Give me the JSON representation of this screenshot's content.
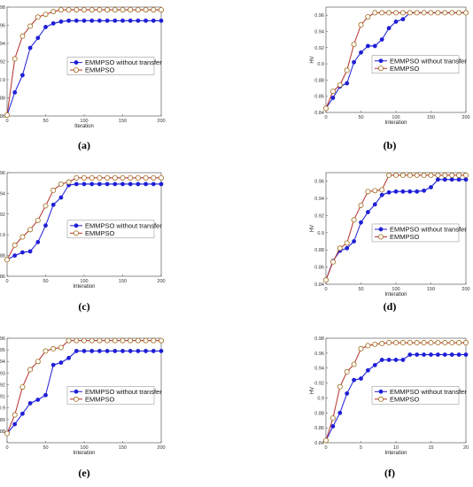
{
  "colors": {
    "without_transfer": "#1f1fd6",
    "emmpso": "#b2302a",
    "band_blue": "#9fb0ff",
    "band_pink": "#f6bfd8",
    "axis": "#444444"
  },
  "chart_data": [
    {
      "panel": "(a)",
      "type": "line",
      "xlabel": "Iteration",
      "ylabel": "HV",
      "xlim": [
        0,
        200
      ],
      "ylim": [
        0.86,
        0.98
      ],
      "xticks": [
        "0",
        "50",
        "100",
        "150",
        "200"
      ],
      "yticks": [
        "0.86",
        "0.88",
        "0.9",
        "0.92",
        "0.94",
        "0.96",
        "0.98"
      ],
      "legend": "middle-right",
      "series": [
        {
          "name": "EMMPSO without transfer",
          "marker": "filled-circle",
          "x": [
            0,
            10,
            20,
            30,
            40,
            50,
            60,
            70,
            80,
            90,
            100,
            110,
            120,
            130,
            140,
            150,
            160,
            170,
            180,
            190,
            200
          ],
          "y": [
            0.861,
            0.886,
            0.905,
            0.935,
            0.946,
            0.958,
            0.962,
            0.964,
            0.965,
            0.965,
            0.965,
            0.965,
            0.965,
            0.965,
            0.965,
            0.965,
            0.965,
            0.965,
            0.965,
            0.965,
            0.965
          ]
        },
        {
          "name": "EMMPSO",
          "marker": "open-circle",
          "x": [
            0,
            10,
            20,
            30,
            40,
            50,
            60,
            70,
            80,
            90,
            100,
            110,
            120,
            130,
            140,
            150,
            160,
            170,
            180,
            190,
            200
          ],
          "y": [
            0.861,
            0.923,
            0.948,
            0.959,
            0.969,
            0.972,
            0.975,
            0.977,
            0.977,
            0.977,
            0.977,
            0.977,
            0.977,
            0.977,
            0.977,
            0.977,
            0.977,
            0.977,
            0.977,
            0.977,
            0.977
          ]
        }
      ]
    },
    {
      "panel": "(b)",
      "type": "line",
      "xlabel": "Interation",
      "ylabel": "HV",
      "xlim": [
        0,
        200
      ],
      "ylim": [
        0.84,
        0.97
      ],
      "xticks": [
        "0",
        "50",
        "100",
        "150",
        "200"
      ],
      "yticks": [
        "0.84",
        "0.86",
        "0.88",
        "0.9",
        "0.92",
        "0.94",
        "0.96"
      ],
      "legend": "middle-right",
      "series": [
        {
          "name": "EMMPSO without transfer",
          "marker": "filled-circle",
          "x": [
            0,
            10,
            20,
            30,
            40,
            50,
            60,
            70,
            80,
            90,
            100,
            110,
            120,
            130,
            140,
            150,
            160,
            170,
            180,
            190,
            200
          ],
          "y": [
            0.845,
            0.858,
            0.872,
            0.876,
            0.902,
            0.914,
            0.922,
            0.922,
            0.93,
            0.944,
            0.952,
            0.955,
            0.963,
            0.963,
            0.963,
            0.963,
            0.963,
            0.963,
            0.963,
            0.963,
            0.963
          ]
        },
        {
          "name": "EMMPSO",
          "marker": "open-circle",
          "x": [
            0,
            10,
            20,
            30,
            40,
            50,
            60,
            70,
            80,
            90,
            100,
            110,
            120,
            130,
            140,
            150,
            160,
            170,
            180,
            190,
            200
          ],
          "y": [
            0.845,
            0.866,
            0.874,
            0.892,
            0.924,
            0.948,
            0.958,
            0.963,
            0.963,
            0.963,
            0.963,
            0.963,
            0.963,
            0.963,
            0.963,
            0.963,
            0.963,
            0.963,
            0.963,
            0.963,
            0.963
          ]
        }
      ]
    },
    {
      "panel": "(c)",
      "type": "line",
      "xlabel": "Interation",
      "ylabel": "HV",
      "xlim": [
        0,
        200
      ],
      "ylim": [
        0.86,
        0.96
      ],
      "xticks": [
        "0",
        "50",
        "100",
        "150",
        "200"
      ],
      "yticks": [
        "0.86",
        "0.88",
        "0.9",
        "0.92",
        "0.94",
        "0.96"
      ],
      "legend": "middle-right",
      "series": [
        {
          "name": "EMMPSO without transfer",
          "marker": "filled-circle",
          "x": [
            0,
            10,
            20,
            30,
            40,
            50,
            60,
            70,
            80,
            90,
            100,
            110,
            120,
            130,
            140,
            150,
            160,
            170,
            180,
            190,
            200
          ],
          "y": [
            0.876,
            0.88,
            0.883,
            0.884,
            0.893,
            0.909,
            0.929,
            0.936,
            0.948,
            0.949,
            0.949,
            0.949,
            0.949,
            0.949,
            0.949,
            0.949,
            0.949,
            0.949,
            0.949,
            0.949,
            0.949
          ]
        },
        {
          "name": "EMMPSO",
          "marker": "open-circle",
          "x": [
            0,
            10,
            20,
            30,
            40,
            50,
            60,
            70,
            80,
            90,
            100,
            110,
            120,
            130,
            140,
            150,
            160,
            170,
            180,
            190,
            200
          ],
          "y": [
            0.876,
            0.89,
            0.898,
            0.905,
            0.914,
            0.928,
            0.943,
            0.949,
            0.951,
            0.955,
            0.955,
            0.955,
            0.955,
            0.955,
            0.955,
            0.955,
            0.955,
            0.955,
            0.955,
            0.955,
            0.955
          ]
        }
      ]
    },
    {
      "panel": "(d)",
      "type": "line",
      "xlabel": "Interation",
      "ylabel": "HV",
      "xlim": [
        0,
        200
      ],
      "ylim": [
        0.84,
        0.97
      ],
      "xticks": [
        "0",
        "50",
        "100",
        "150",
        "200"
      ],
      "yticks": [
        "0.84",
        "0.86",
        "0.88",
        "0.9",
        "0.92",
        "0.94",
        "0.96"
      ],
      "legend": "middle-right",
      "series": [
        {
          "name": "EMMPSO without transfer",
          "marker": "filled-circle",
          "x": [
            0,
            10,
            20,
            30,
            40,
            50,
            60,
            70,
            80,
            90,
            100,
            110,
            120,
            130,
            140,
            150,
            160,
            170,
            180,
            190,
            200
          ],
          "y": [
            0.845,
            0.867,
            0.879,
            0.882,
            0.89,
            0.912,
            0.924,
            0.933,
            0.944,
            0.947,
            0.948,
            0.948,
            0.948,
            0.948,
            0.949,
            0.953,
            0.962,
            0.962,
            0.962,
            0.962,
            0.962
          ]
        },
        {
          "name": "EMMPSO",
          "marker": "open-circle",
          "x": [
            0,
            10,
            20,
            30,
            40,
            50,
            60,
            70,
            80,
            90,
            100,
            110,
            120,
            130,
            140,
            150,
            160,
            170,
            180,
            190,
            200
          ],
          "y": [
            0.845,
            0.866,
            0.882,
            0.888,
            0.915,
            0.932,
            0.948,
            0.949,
            0.95,
            0.967,
            0.967,
            0.967,
            0.967,
            0.967,
            0.967,
            0.967,
            0.967,
            0.967,
            0.967,
            0.967,
            0.967
          ]
        }
      ]
    },
    {
      "panel": "(e)",
      "type": "line",
      "xlabel": "Interation",
      "ylabel": "HV",
      "xlim": [
        0,
        200
      ],
      "ylim": [
        0.87,
        0.96
      ],
      "xticks": [
        "0",
        "50",
        "100",
        "150",
        "200"
      ],
      "yticks": [
        "0.88",
        "0.89",
        "0.9",
        "0.91",
        "0.92",
        "0.93",
        "0.94",
        "0.95",
        "0.96"
      ],
      "legend": "middle-right",
      "series": [
        {
          "name": "EMMPSO without transfer",
          "marker": "filled-circle",
          "x": [
            0,
            10,
            20,
            30,
            40,
            50,
            60,
            70,
            80,
            90,
            100,
            110,
            120,
            130,
            140,
            150,
            160,
            170,
            180,
            190,
            200
          ],
          "y": [
            0.878,
            0.886,
            0.895,
            0.904,
            0.907,
            0.911,
            0.937,
            0.939,
            0.943,
            0.949,
            0.949,
            0.949,
            0.949,
            0.949,
            0.949,
            0.949,
            0.949,
            0.949,
            0.949,
            0.949,
            0.949
          ]
        },
        {
          "name": "EMMPSO",
          "marker": "open-circle",
          "x": [
            0,
            10,
            20,
            30,
            40,
            50,
            60,
            70,
            80,
            90,
            100,
            110,
            120,
            130,
            140,
            150,
            160,
            170,
            180,
            190,
            200
          ],
          "y": [
            0.878,
            0.894,
            0.918,
            0.933,
            0.94,
            0.949,
            0.951,
            0.952,
            0.958,
            0.958,
            0.958,
            0.958,
            0.958,
            0.958,
            0.958,
            0.958,
            0.958,
            0.958,
            0.958,
            0.958,
            0.958
          ]
        }
      ]
    },
    {
      "panel": "(f)",
      "type": "line",
      "xlabel": "Interation",
      "ylabel": "HV",
      "xlim": [
        0,
        20
      ],
      "ylim": [
        0.84,
        0.98
      ],
      "xticks": [
        "0",
        "5",
        "10",
        "15",
        "20"
      ],
      "yticks": [
        "0.84",
        "0.86",
        "0.88",
        "0.9",
        "0.92",
        "0.94",
        "0.96",
        "0.98"
      ],
      "legend": "middle-right",
      "series": [
        {
          "name": "EMMPSO without transfer",
          "marker": "filled-circle",
          "x": [
            0,
            1,
            2,
            3,
            4,
            5,
            6,
            7,
            8,
            9,
            10,
            11,
            12,
            13,
            14,
            15,
            16,
            17,
            18,
            19,
            20
          ],
          "y": [
            0.843,
            0.862,
            0.88,
            0.906,
            0.924,
            0.926,
            0.937,
            0.944,
            0.951,
            0.951,
            0.951,
            0.951,
            0.958,
            0.958,
            0.958,
            0.958,
            0.958,
            0.958,
            0.958,
            0.958,
            0.958
          ]
        },
        {
          "name": "EMMPSO",
          "marker": "open-circle",
          "x": [
            0,
            1,
            2,
            3,
            4,
            5,
            6,
            7,
            8,
            9,
            10,
            11,
            12,
            13,
            14,
            15,
            16,
            17,
            18,
            19,
            20
          ],
          "y": [
            0.843,
            0.873,
            0.915,
            0.935,
            0.945,
            0.966,
            0.97,
            0.972,
            0.973,
            0.974,
            0.974,
            0.974,
            0.974,
            0.974,
            0.974,
            0.974,
            0.974,
            0.974,
            0.974,
            0.974,
            0.974
          ]
        }
      ]
    }
  ]
}
